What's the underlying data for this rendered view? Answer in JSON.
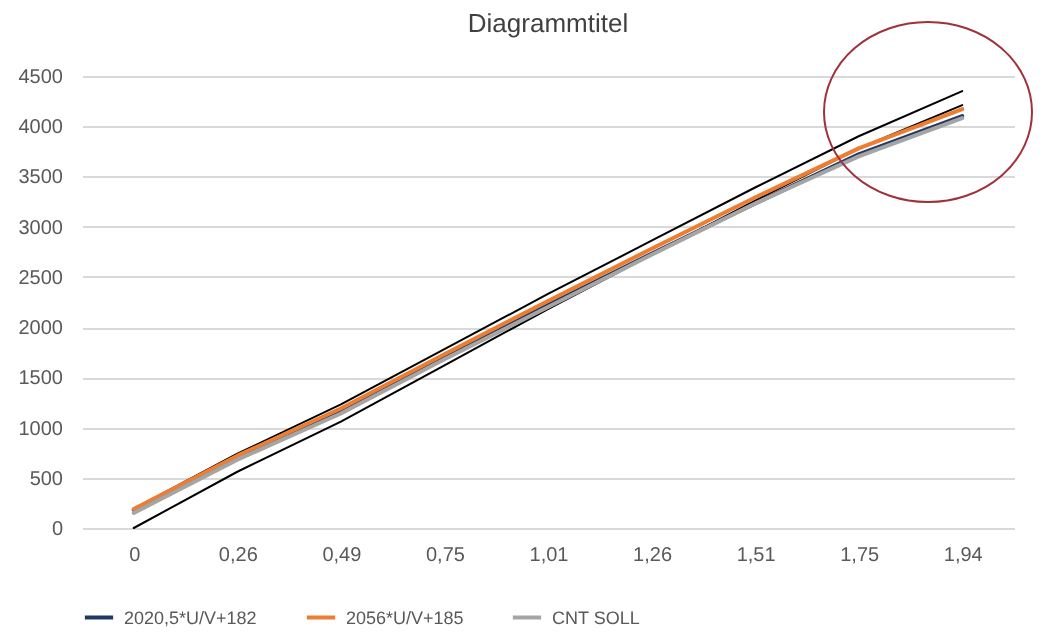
{
  "chart_data": {
    "type": "line",
    "title": "Diagrammtitel",
    "categories": [
      "0",
      "0,26",
      "0,49",
      "0,75",
      "1,01",
      "1,26",
      "1,51",
      "1,75",
      "1,94"
    ],
    "series": [
      {
        "name": "2020,5*U/V+182",
        "color": "#203864",
        "values": [
          180,
          710,
          1170,
          1700,
          2220,
          2730,
          3230,
          3720,
          4100
        ]
      },
      {
        "name": "2056*U/V+185",
        "color": "#ed7d31",
        "values": [
          190,
          720,
          1190,
          1730,
          2260,
          2780,
          3290,
          3780,
          4170
        ]
      },
      {
        "name": "CNT SOLL",
        "color": "#a5a5a5",
        "values": [
          150,
          680,
          1140,
          1680,
          2200,
          2720,
          3230,
          3700,
          4080
        ]
      },
      {
        "color": "#000000",
        "values": [
          190,
          740,
          1230,
          1780,
          2330,
          2860,
          3390,
          3900,
          4350
        ]
      },
      {
        "color": "#000000",
        "values": [
          0,
          560,
          1060,
          1620,
          2180,
          2720,
          3260,
          3780,
          4210
        ]
      }
    ],
    "ylim": [
      0,
      4500
    ],
    "yticks": [
      0,
      500,
      1000,
      1500,
      2000,
      2500,
      3000,
      3500,
      4000,
      4500
    ],
    "grid": "y",
    "legend": "bottom",
    "marker": "none",
    "line_style": "solid"
  }
}
